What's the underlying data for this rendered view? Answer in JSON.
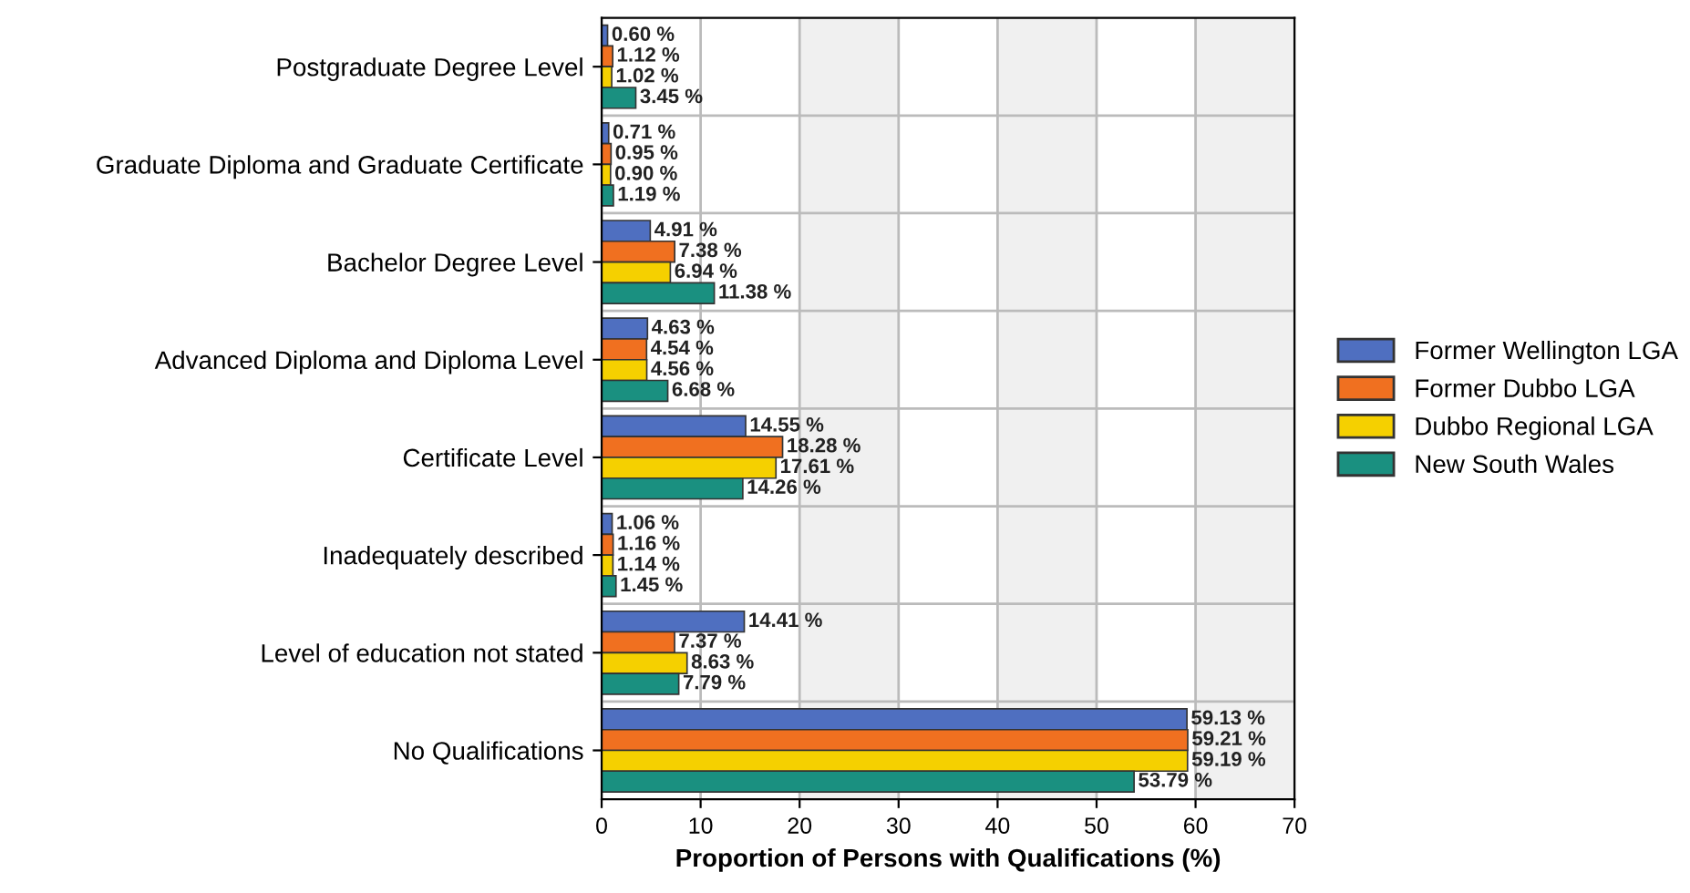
{
  "chart_data": {
    "type": "bar",
    "orientation": "horizontal",
    "xlabel": "Proportion of Persons with Qualifications (%)",
    "categories": [
      "Postgraduate Degree Level",
      "Graduate Diploma and Graduate Certificate",
      "Bachelor Degree Level",
      "Advanced Diploma and Diploma Level",
      "Certificate Level",
      "Inadequately described",
      "Level of education not stated",
      "No Qualifications"
    ],
    "series": [
      {
        "name": "Former Wellington LGA",
        "color": "#4f6fc0",
        "values": [
          0.6,
          0.71,
          4.91,
          4.63,
          14.55,
          1.06,
          14.41,
          59.13
        ],
        "value_labels": [
          "0.60 %",
          "0.71 %",
          "4.91 %",
          "4.63 %",
          "14.55 %",
          "1.06 %",
          "14.41 %",
          "59.13 %"
        ]
      },
      {
        "name": "Former Dubbo LGA",
        "color": "#f07020",
        "values": [
          1.12,
          0.95,
          7.38,
          4.54,
          18.28,
          1.16,
          7.37,
          59.21
        ],
        "value_labels": [
          "1.12 %",
          "0.95 %",
          "7.38 %",
          "4.54 %",
          "18.28 %",
          "1.16 %",
          "7.37 %",
          "59.21 %"
        ]
      },
      {
        "name": "Dubbo Regional LGA",
        "color": "#f5d000",
        "values": [
          1.02,
          0.9,
          6.94,
          4.56,
          17.61,
          1.14,
          8.63,
          59.19
        ],
        "value_labels": [
          "1.02 %",
          "0.90 %",
          "6.94 %",
          "4.56 %",
          "17.61 %",
          "1.14 %",
          "8.63 %",
          "59.19 %"
        ]
      },
      {
        "name": "New South Wales",
        "color": "#1a9080",
        "values": [
          3.45,
          1.19,
          11.38,
          6.68,
          14.26,
          1.45,
          7.79,
          53.79
        ],
        "value_labels": [
          "3.45 %",
          "1.19 %",
          "11.38 %",
          "6.68 %",
          "14.26 %",
          "1.45 %",
          "7.79 %",
          "53.79 %"
        ]
      }
    ],
    "xlim": [
      0,
      70
    ],
    "xticks": [
      0,
      10,
      20,
      30,
      40,
      50,
      60,
      70
    ],
    "bands": [
      {
        "axis": "x",
        "from": 20,
        "to": 30,
        "color": "#f0f0f0"
      },
      {
        "axis": "x",
        "from": 40,
        "to": 50,
        "color": "#f0f0f0"
      },
      {
        "axis": "x",
        "from": 60,
        "to": 70,
        "color": "#f0f0f0"
      }
    ],
    "grid": true,
    "legend": "right"
  }
}
